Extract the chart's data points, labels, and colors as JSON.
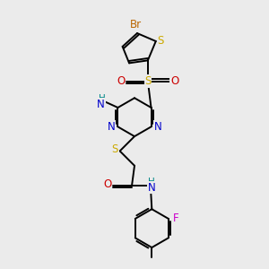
{
  "bg_color": "#ebebeb",
  "atom_colors": {
    "C": "#000000",
    "N": "#0000cc",
    "O": "#cc0000",
    "S": "#ccaa00",
    "Br": "#bb6600",
    "F": "#cc00cc",
    "H": "#008888"
  },
  "bond_color": "#000000",
  "bond_width": 1.4,
  "font_size": 8.5
}
